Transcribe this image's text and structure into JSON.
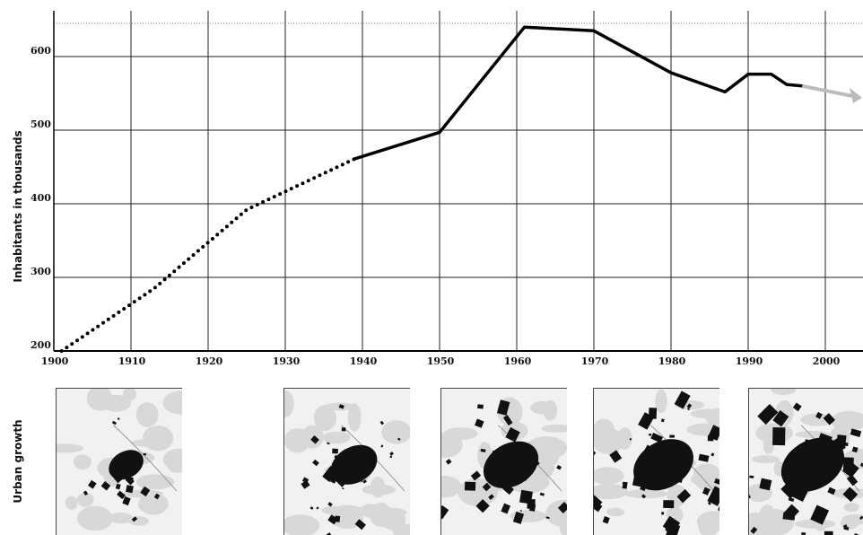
{
  "chart_data": {
    "type": "line",
    "title": "",
    "xlabel": "",
    "ylabel": "Inhabitants in thousands",
    "xlim": [
      1900,
      2005
    ],
    "ylim": [
      200,
      650
    ],
    "x_ticks": [
      1900,
      1910,
      1920,
      1930,
      1940,
      1950,
      1960,
      1970,
      1980,
      1990,
      2000
    ],
    "y_ticks": [
      200,
      300,
      400,
      500,
      600
    ],
    "grid": true,
    "dotted_segment": [
      [
        1901,
        200
      ],
      [
        1913,
        285
      ],
      [
        1925,
        392
      ],
      [
        1939,
        461
      ]
    ],
    "solid_segment": [
      [
        1939,
        461
      ],
      [
        1950,
        497
      ],
      [
        1961,
        640
      ],
      [
        1970,
        635
      ],
      [
        1980,
        578
      ],
      [
        1987,
        552
      ],
      [
        1990,
        576
      ],
      [
        1993,
        576
      ],
      [
        1995,
        562
      ],
      [
        1997,
        560
      ]
    ],
    "projection": [
      [
        1997,
        560
      ],
      [
        2005,
        544
      ]
    ],
    "projection_color": "#bbbbbb"
  },
  "urban_growth": {
    "label": "Urban growth",
    "maps": [
      {
        "id": "map-1"
      },
      {
        "id": "map-2"
      },
      {
        "id": "map-3"
      },
      {
        "id": "map-4"
      },
      {
        "id": "map-5"
      }
    ]
  }
}
